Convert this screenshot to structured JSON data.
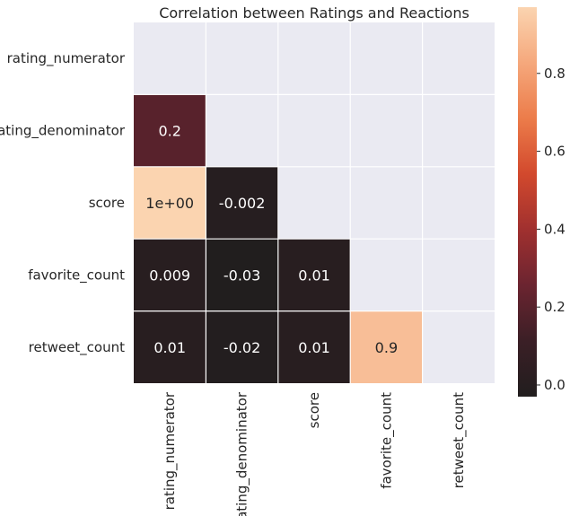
{
  "chart_data": {
    "type": "heatmap",
    "title": "Correlation between Ratings and Reactions",
    "rows": [
      "rating_numerator",
      "rating_denominator",
      "score",
      "favorite_count",
      "retweet_count"
    ],
    "columns": [
      "rating_numerator",
      "rating_denominator",
      "score",
      "favorite_count",
      "retweet_count"
    ],
    "mask": "upper-triangle-including-diagonal",
    "cells": [
      {
        "row": 1,
        "col": 0,
        "value": 0.2,
        "label": "0.2"
      },
      {
        "row": 2,
        "col": 0,
        "value": 1.0,
        "label": "1e+00"
      },
      {
        "row": 2,
        "col": 1,
        "value": -0.002,
        "label": "-0.002"
      },
      {
        "row": 3,
        "col": 0,
        "value": 0.009,
        "label": "0.009"
      },
      {
        "row": 3,
        "col": 1,
        "value": -0.03,
        "label": "-0.03"
      },
      {
        "row": 3,
        "col": 2,
        "value": 0.01,
        "label": "0.01"
      },
      {
        "row": 4,
        "col": 0,
        "value": 0.01,
        "label": "0.01"
      },
      {
        "row": 4,
        "col": 1,
        "value": -0.02,
        "label": "-0.02"
      },
      {
        "row": 4,
        "col": 2,
        "value": 0.01,
        "label": "0.01"
      },
      {
        "row": 4,
        "col": 3,
        "value": 0.9,
        "label": "0.9"
      }
    ],
    "colorbar": {
      "vmin": -0.03,
      "vmax": 0.97,
      "ticks": [
        0.0,
        0.2,
        0.4,
        0.6,
        0.8
      ],
      "tick_labels": [
        "0.0",
        "0.2",
        "0.4",
        "0.6",
        "0.8"
      ],
      "placement": "right"
    },
    "colormap": [
      "#211e1e",
      "#3b1f26",
      "#6b2430",
      "#a0302f",
      "#d2492d",
      "#ec7c4a",
      "#f5a87c",
      "#fbd4b0"
    ],
    "mask_color": "#eaeaf2",
    "grid_color": "#ffffff"
  }
}
